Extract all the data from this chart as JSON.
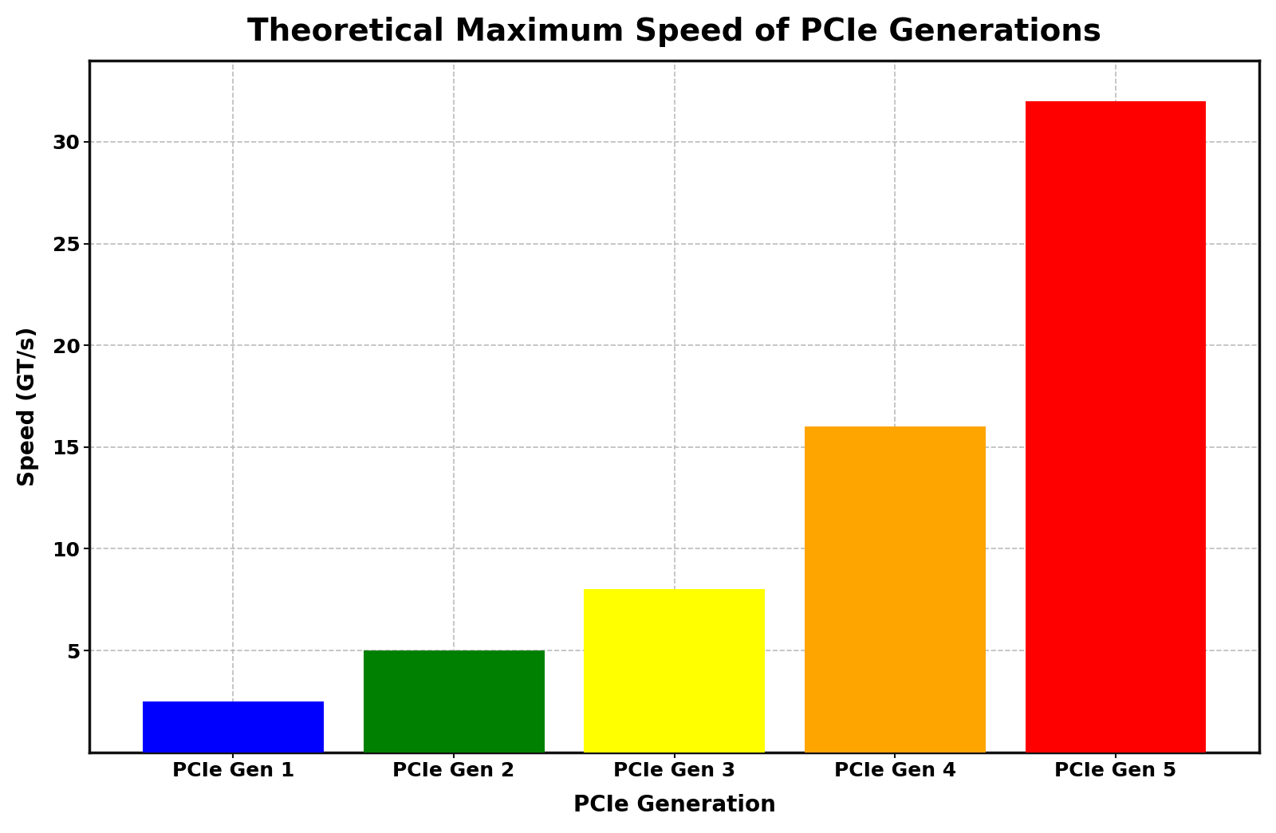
{
  "title": "Theoretical Maximum Speed of PCIe Generations",
  "xlabel": "PCIe Generation",
  "ylabel": "Speed (GT/s)",
  "categories": [
    "PCIe Gen 1",
    "PCIe Gen 2",
    "PCIe Gen 3",
    "PCIe Gen 4",
    "PCIe Gen 5"
  ],
  "values": [
    2.5,
    5,
    8,
    16,
    32
  ],
  "bar_colors": [
    "#0000ff",
    "#008000",
    "#ffff00",
    "#ffa500",
    "#ff0000"
  ],
  "bar_edgecolors": [
    "#0000ff",
    "#008000",
    "#ffff00",
    "#ffa500",
    "#ff0000"
  ],
  "ylim": [
    0,
    34
  ],
  "yticks": [
    5,
    10,
    15,
    20,
    25,
    30
  ],
  "grid_color": "#bbbbbb",
  "grid_linestyle": "--",
  "background_color": "#ffffff",
  "title_fontsize": 28,
  "axis_label_fontsize": 20,
  "tick_fontsize": 18,
  "bar_width": 0.82,
  "spine_color": "#111111",
  "spine_linewidth": 2.5
}
